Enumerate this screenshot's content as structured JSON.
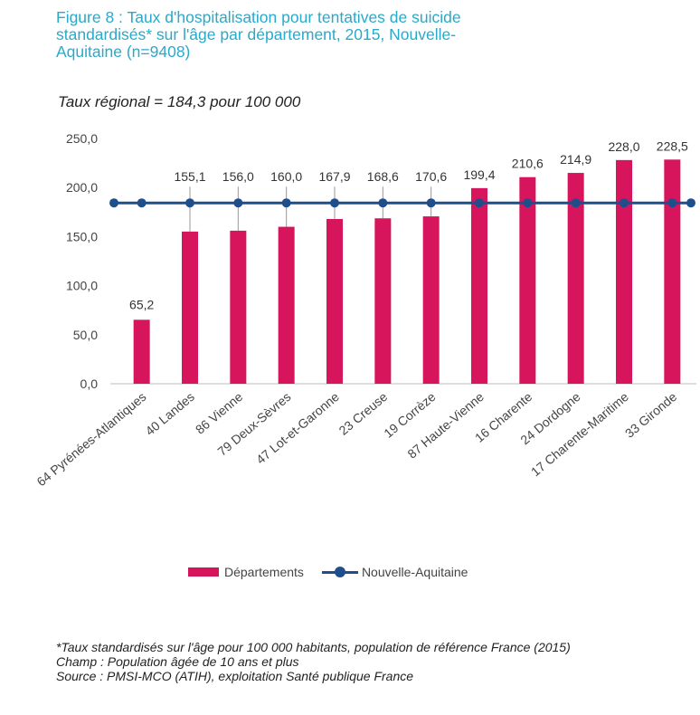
{
  "title_lines": [
    "Figure 8 : Taux d'hospitalisation pour tentatives de suicide",
    "standardisés* sur l'âge par département, 2015, Nouvelle-",
    "Aquitaine (n=9408)"
  ],
  "regional_rate": "Taux régional = 184,3 pour 100 000",
  "chart_data": {
    "type": "bar",
    "categories": [
      "64 Pyrénées-Atlantiques",
      "40 Landes",
      "86 Vienne",
      "79 Deux-Sèvres",
      "47 Lot-et-Garonne",
      "23 Creuse",
      "19 Corrèze",
      "87 Haute-Vienne",
      "16 Charente",
      "24 Dordogne",
      "17 Charente-Maritime",
      "33 Gironde"
    ],
    "series": [
      {
        "name": "Départements",
        "type": "bar",
        "values": [
          65.2,
          155.1,
          156.0,
          160.0,
          167.9,
          168.6,
          170.6,
          199.4,
          210.6,
          214.9,
          228.0,
          228.5
        ],
        "labels": [
          "65,2",
          "155,1",
          "156,0",
          "160,0",
          "167,9",
          "168,6",
          "170,6",
          "199,4",
          "210,6",
          "214,9",
          "228,0",
          "228,5"
        ],
        "color": "#d6155d"
      },
      {
        "name": "Nouvelle-Aquitaine",
        "type": "line",
        "values": [
          184.3,
          184.3,
          184.3,
          184.3,
          184.3,
          184.3,
          184.3,
          184.3,
          184.3,
          184.3,
          184.3,
          184.3
        ],
        "color": "#1f4e8c"
      }
    ],
    "yticks": [
      "0,0",
      "50,0",
      "100,0",
      "150,0",
      "200,0",
      "250,0"
    ],
    "ylim": [
      0,
      250
    ],
    "grid": false,
    "legend": "bottom"
  },
  "legend": {
    "bar_label": "Départements",
    "line_label": "Nouvelle-Aquitaine"
  },
  "notes": [
    "*Taux standardisés sur l'âge pour 100 000 habitants, population de référence France (2015)",
    "Champ : Population âgée de 10 ans et plus",
    "Source : PMSI-MCO (ATIH), exploitation Santé publique France"
  ]
}
